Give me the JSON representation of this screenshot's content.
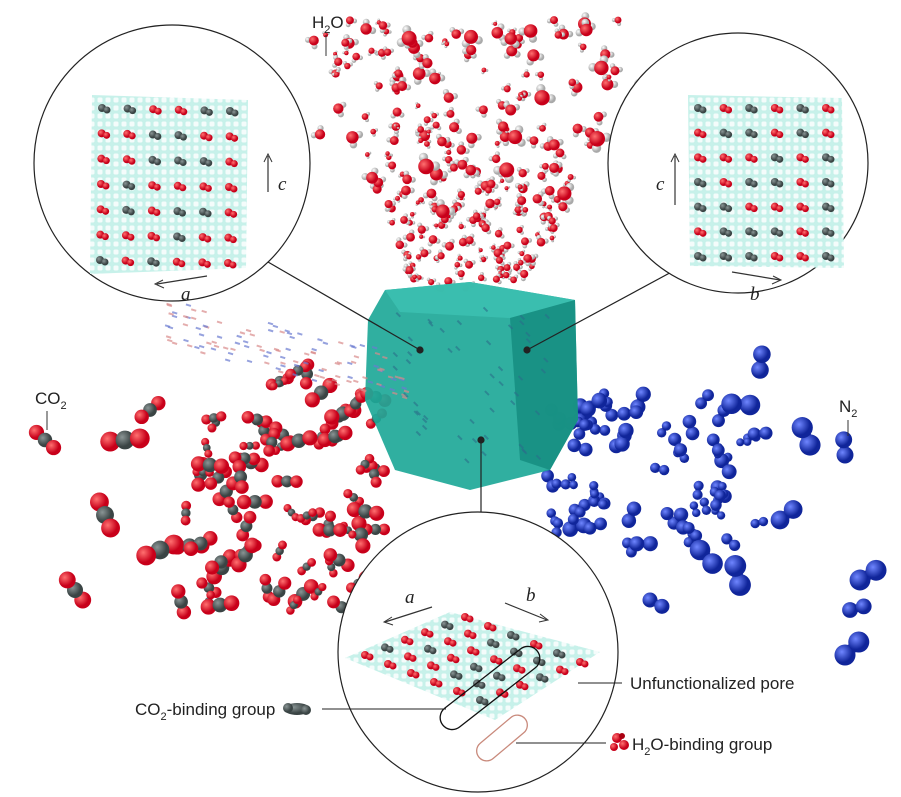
{
  "molecule_labels": {
    "h2o": [
      "H",
      "2",
      "O"
    ],
    "co2": [
      "CO",
      "2"
    ],
    "n2": [
      "N",
      "2"
    ]
  },
  "insets": {
    "left": {
      "axes": [
        "c",
        "a"
      ]
    },
    "right": {
      "axes": [
        "c",
        "b"
      ]
    },
    "bottom": {
      "axes": [
        "a",
        "b"
      ]
    }
  },
  "legend": {
    "unfunctionalized": "Unfunctionalized pore",
    "co2_group": [
      "CO",
      "2",
      "-binding group"
    ],
    "h2o_group": [
      "H",
      "2",
      "O-binding group"
    ]
  }
}
